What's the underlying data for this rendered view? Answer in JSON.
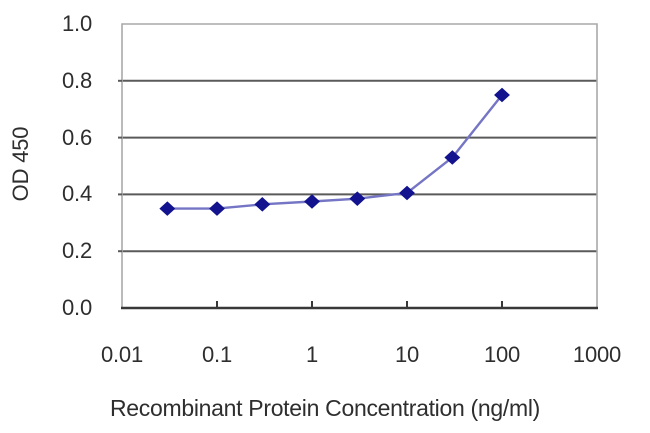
{
  "chart_data": {
    "type": "line",
    "title": "",
    "xlabel": "Recombinant Protein Concentration (ng/ml)",
    "ylabel": "OD 450",
    "x_scale": "log10",
    "xlim": [
      0.01,
      1000
    ],
    "ylim": [
      0.0,
      1.0
    ],
    "x_ticks": [
      {
        "value": 0.01,
        "label": "0.01"
      },
      {
        "value": 0.1,
        "label": "0.1"
      },
      {
        "value": 1,
        "label": "1"
      },
      {
        "value": 10,
        "label": "10"
      },
      {
        "value": 100,
        "label": "100"
      },
      {
        "value": 1000,
        "label": "1000"
      }
    ],
    "y_ticks": [
      {
        "value": 0.0,
        "label": "0.0"
      },
      {
        "value": 0.2,
        "label": "0.2"
      },
      {
        "value": 0.4,
        "label": "0.4"
      },
      {
        "value": 0.6,
        "label": "0.6"
      },
      {
        "value": 0.8,
        "label": "0.8"
      },
      {
        "value": 1.0,
        "label": "1.0"
      }
    ],
    "grid": "horizontal",
    "legend_position": "none",
    "series": [
      {
        "name": "OD 450",
        "marker": "diamond",
        "x": [
          0.03,
          0.1,
          0.3,
          1,
          3,
          10,
          30,
          100
        ],
        "y": [
          0.35,
          0.35,
          0.365,
          0.375,
          0.385,
          0.405,
          0.53,
          0.75
        ]
      }
    ]
  },
  "style": {
    "background": "#ffffff",
    "line_color": "#7575c5",
    "marker_color": "#13138f",
    "gridline_color": "#5a5a5a",
    "frame_color": "#a9a9a9",
    "axis_color": "#383838",
    "text_color": "#2e2e2e"
  }
}
